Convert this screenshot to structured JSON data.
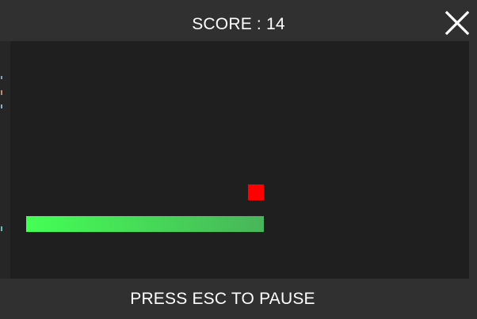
{
  "header": {
    "score_text": "SCORE : 14"
  },
  "close_button": {
    "icon": "close-icon"
  },
  "game": {
    "food_color": "#ff0000",
    "snake_color_head": "#44ff55",
    "snake_color_tail": "#48b55a",
    "board_color": "#1f1f1f"
  },
  "footer": {
    "hint_text": "PRESS ESC TO PAUSE"
  }
}
